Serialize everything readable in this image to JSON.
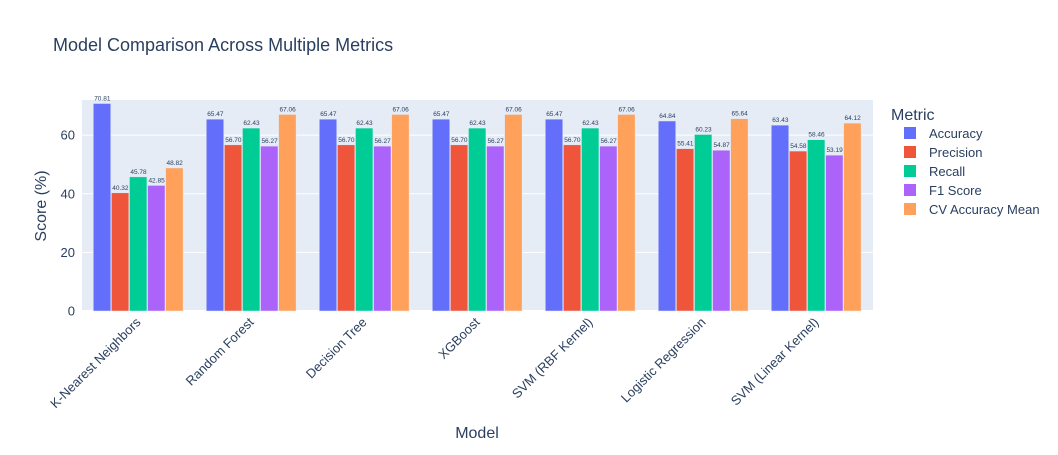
{
  "chart_data": {
    "type": "bar",
    "title": "Model Comparison Across Multiple Metrics",
    "xlabel": "Model",
    "ylabel": "Score (%)",
    "ylim": [
      0,
      72
    ],
    "yticks": [
      0,
      20,
      40,
      60
    ],
    "grid": true,
    "legend_title": "Metric",
    "legend_position": "right",
    "categories": [
      "K-Nearest Neighbors",
      "Random Forest",
      "Decision Tree",
      "XGBoost",
      "SVM (RBF Kernel)",
      "Logistic Regression",
      "SVM (Linear Kernel)"
    ],
    "series": [
      {
        "name": "Accuracy",
        "color": "#636efa",
        "values": [
          70.81,
          65.47,
          65.47,
          65.47,
          65.47,
          64.84,
          63.43
        ]
      },
      {
        "name": "Precision",
        "color": "#ef553b",
        "values": [
          40.32,
          56.7,
          56.7,
          56.7,
          56.7,
          55.41,
          54.58
        ]
      },
      {
        "name": "Recall",
        "color": "#00cc96",
        "values": [
          45.78,
          62.43,
          62.43,
          62.43,
          62.43,
          60.23,
          58.46
        ]
      },
      {
        "name": "F1 Score",
        "color": "#ab63fa",
        "values": [
          42.85,
          56.27,
          56.27,
          56.27,
          56.27,
          54.87,
          53.19
        ]
      },
      {
        "name": "CV Accuracy Mean",
        "color": "#ffa15a",
        "values": [
          48.82,
          67.06,
          67.06,
          67.06,
          67.06,
          65.64,
          64.12
        ]
      }
    ],
    "plot_background": "#e5ecf6",
    "text_color": "#2a3f5f"
  }
}
